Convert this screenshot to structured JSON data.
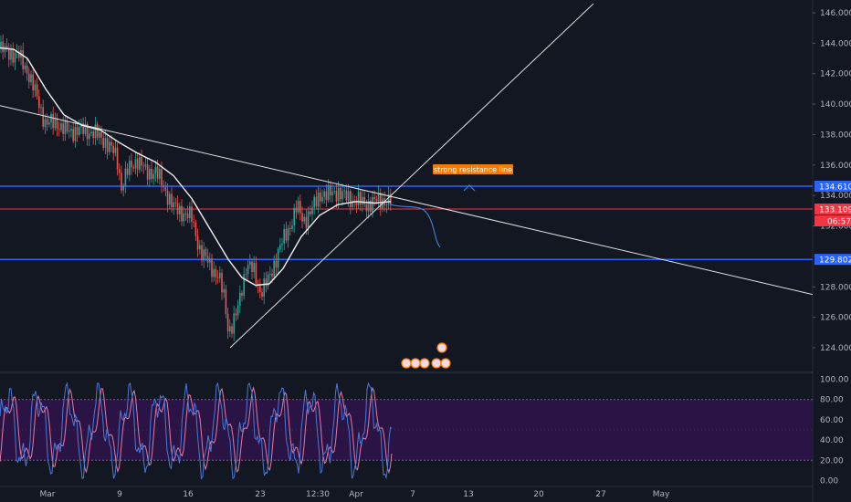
{
  "chart_data": {
    "type": "line",
    "price_axis": {
      "range": [
        122.5,
        146.6
      ],
      "ticks": [
        "146.000",
        "144.000",
        "142.000",
        "140.000",
        "138.000",
        "136.000",
        "134.000",
        "132.000",
        "128.000",
        "126.000",
        "124.000"
      ]
    },
    "time_axis": {
      "ticks": [
        "Mar",
        "9",
        "16",
        "23",
        "12:30",
        "Apr",
        "7",
        "13",
        "20",
        "27",
        "May"
      ]
    },
    "oscillator_axis": {
      "range": [
        -5,
        105
      ],
      "ticks": [
        "100.00",
        "80.00",
        "60.00",
        "40.00",
        "20.00",
        "0.00"
      ],
      "band": [
        20,
        80
      ]
    },
    "horizontal_levels": [
      {
        "price": 134.61,
        "label": "134.610",
        "color": "#2962ff"
      },
      {
        "price": 133.109,
        "label": "133.109",
        "color": "#f23645"
      },
      {
        "price": 129.802,
        "label": "129.802",
        "color": "#2962ff"
      }
    ],
    "countdown_tag": {
      "label": "06:57",
      "color": "#f23645"
    },
    "annotation": {
      "text": "strong resistance line",
      "color": "#f57c00"
    },
    "colors": {
      "background": "#131722",
      "up_candle": "#26a69a",
      "down_candle": "#ef5350",
      "moving_average": "#f0f0f0",
      "trendline": "#e0e0e0",
      "oscillator_band": "#2a1446",
      "oscillator_k": "#4a78d8",
      "oscillator_d": "#e57aa0",
      "projection": "#3b7bd6"
    }
  }
}
